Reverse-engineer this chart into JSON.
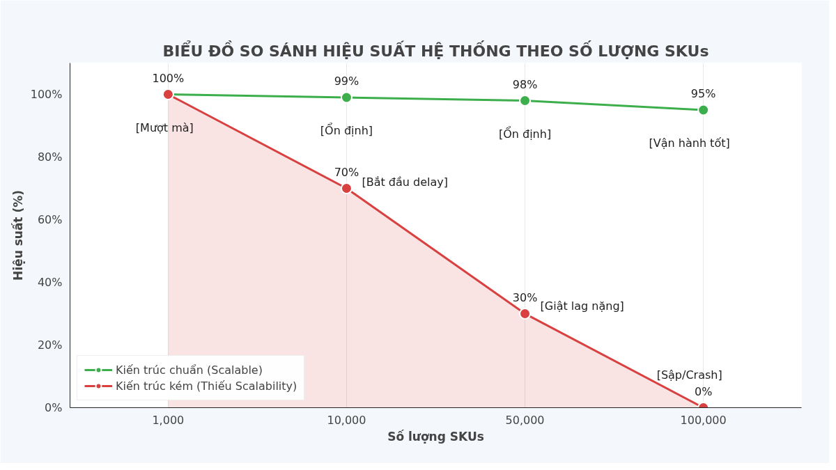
{
  "chart_data": {
    "type": "line",
    "title": "BIỂU ĐỒ SO SÁNH HIỆU SUẤT HỆ THỐNG THEO SỐ LƯỢNG SKUs",
    "xlabel": "Số lượng SKUs",
    "ylabel": "Hiệu suất (%)",
    "categories": [
      "1,000",
      "10,000",
      "50,000",
      "100,000"
    ],
    "series": [
      {
        "name": "Kiến trúc chuẩn (Scalable)",
        "color": "#3cae4c",
        "values": [
          100,
          99,
          98,
          95
        ],
        "value_labels": [
          null,
          "99%",
          "98%",
          "95%"
        ]
      },
      {
        "name": "Kiến trúc kém (Thiếu Scalability)",
        "type": "area",
        "color": "#d94040",
        "values": [
          100,
          70,
          30,
          0
        ],
        "value_labels": [
          "100%",
          "70%",
          "30%",
          "0%"
        ]
      }
    ],
    "ylim": [
      0,
      110
    ],
    "yticks": [
      {
        "value": 0,
        "label": "0%"
      },
      {
        "value": 20,
        "label": "20%"
      },
      {
        "value": 40,
        "label": "40%"
      },
      {
        "value": 60,
        "label": "60%"
      },
      {
        "value": 80,
        "label": "80%"
      },
      {
        "value": 100,
        "label": "100%"
      }
    ],
    "annotations": [
      {
        "text": "[Mượt mà]",
        "x": "1,000",
        "y": 100
      },
      {
        "text": "[Ổn định]",
        "x": "10,000",
        "y": 99
      },
      {
        "text": "[Ổn định]",
        "x": "50,000",
        "y": 98
      },
      {
        "text": "[Vận hành tốt]",
        "x": "100,000",
        "y": 95
      },
      {
        "text": "[Bắt đầu delay]",
        "x": "10,000",
        "y": 70
      },
      {
        "text": "[Giật lag nặng]",
        "x": "50,000",
        "y": 30
      },
      {
        "text": "[Sập/Crash]",
        "x": "100,000",
        "y": 0
      }
    ],
    "grid": "x",
    "legend": "bottom left",
    "marker": "circle",
    "line_style": "solid"
  }
}
